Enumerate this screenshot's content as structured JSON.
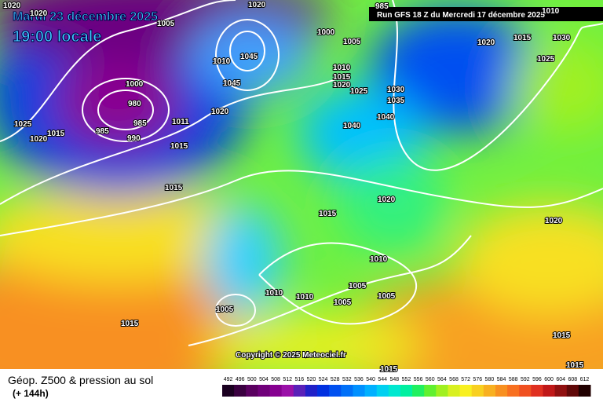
{
  "header": {
    "date": "Mardi 23 décembre 2025",
    "time": "19:00 locale",
    "run": "Run GFS 18 Z du Mercredi 17 décembre 2025"
  },
  "copyright": "Copyright © 2025 Meteociel.fr",
  "footer": {
    "title": "Géop. Z500 & pression au sol",
    "lead": "(+ 144h)"
  },
  "isobar_labels": [
    1020,
    1020,
    1005,
    1020,
    985,
    1010,
    1000,
    1005,
    1020,
    1015,
    1030,
    1045,
    1010,
    1025,
    1010,
    1015,
    1020,
    1045,
    1025,
    1030,
    1035,
    1000,
    980,
    1020,
    1011,
    1040,
    1040,
    985,
    985,
    990,
    1025,
    1015,
    1020,
    1015,
    1015,
    1020,
    1015,
    1020,
    1010,
    1010,
    1010,
    1005,
    1005,
    1005,
    1005,
    1015,
    1015,
    1015,
    1015
  ],
  "legend": {
    "values": [
      492,
      496,
      500,
      504,
      508,
      512,
      516,
      520,
      524,
      528,
      532,
      536,
      540,
      544,
      548,
      552,
      556,
      560,
      564,
      568,
      572,
      576,
      580,
      584,
      588,
      592,
      596,
      600,
      604,
      608,
      612
    ],
    "colors": [
      "#1a0020",
      "#3a0040",
      "#5a0060",
      "#70007a",
      "#860090",
      "#9a10a8",
      "#5a20b8",
      "#2020c8",
      "#0030e0",
      "#0050f0",
      "#0070f8",
      "#0090ff",
      "#00b0ff",
      "#00d0f0",
      "#00e8d0",
      "#00f0a0",
      "#20f060",
      "#60f030",
      "#a0f020",
      "#d8f020",
      "#f8f020",
      "#f8d020",
      "#f8b020",
      "#f89020",
      "#f87020",
      "#f05020",
      "#e03020",
      "#c01818",
      "#901010",
      "#600808",
      "#200000"
    ]
  }
}
